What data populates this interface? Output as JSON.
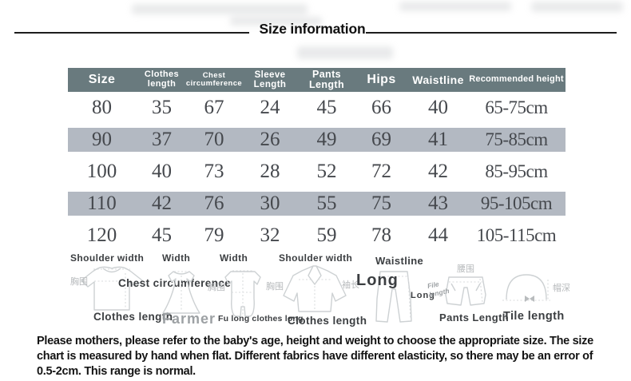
{
  "title": "Size information",
  "table": {
    "headers": [
      "Size",
      "Clothes length",
      "Chest circumference",
      "Sleeve Length",
      "Pants Length",
      "Hips",
      "Waistline",
      "Recommended height"
    ],
    "rows": [
      [
        "80",
        "35",
        "67",
        "24",
        "45",
        "66",
        "40",
        "65-75cm"
      ],
      [
        "90",
        "37",
        "70",
        "26",
        "49",
        "69",
        "41",
        "75-85cm"
      ],
      [
        "100",
        "40",
        "73",
        "28",
        "52",
        "72",
        "42",
        "85-95cm"
      ],
      [
        "110",
        "42",
        "76",
        "30",
        "55",
        "75",
        "43",
        "95-105cm"
      ],
      [
        "120",
        "45",
        "79",
        "32",
        "59",
        "78",
        "44",
        "105-115cm"
      ]
    ]
  },
  "diagrams": {
    "tshirt": {
      "shoulder_width": "Shoulder width",
      "chest_cn": "胸围",
      "chest_circumference": "Chest circumference",
      "clothes_length": "Clothes length"
    },
    "dress": {
      "width": "Width",
      "farmer": "Farmer"
    },
    "romper": {
      "width": "Width",
      "chest_cn": "胸围",
      "clothes_long": "Fu long clothes long"
    },
    "jacket": {
      "shoulder_width": "Shoulder width",
      "chest_cn": "胸围",
      "sleeve_cn": "袖长",
      "clothes_length": "Clothes length"
    },
    "pants": {
      "waistline": "Waistline",
      "long_big": "Long",
      "long_small": "Long"
    },
    "shorts": {
      "waist_cn": "腰围",
      "file_length": "File length",
      "pants_length": "Pants Length"
    },
    "hat": {
      "depth_cn": "帽深",
      "tile_length": "Tile length"
    }
  },
  "note": "Please mothers, please refer to the baby's age, height and weight to choose the appropriate size. The size chart is measured by hand when flat. Different fabrics have different elasticity, so there may be an error of 0.5-2cm. This range is normal.",
  "colors": {
    "header_bg": "#697a7e",
    "alt_row_bg": "#b3b9c2",
    "number_text": "#45484d"
  }
}
